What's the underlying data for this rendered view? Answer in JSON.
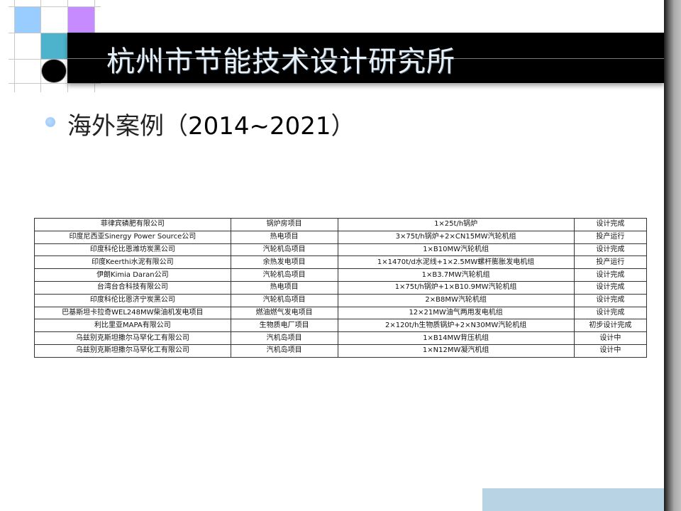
{
  "title": "杭州市节能技术设计研究所",
  "heading": {
    "text_cn": "海外案例（",
    "years": "2014~2021",
    "close": "）"
  },
  "colors": {
    "light_blue": "#99ccff",
    "purple": "#cc99ff",
    "teal": "#4db3cc",
    "title_bar": "#000000",
    "bottom_block": "#b8d4e4"
  },
  "table": {
    "rows": [
      [
        "菲律宾磷肥有限公司",
        "锅炉房项目",
        "1×25t/h锅炉",
        "设计完成"
      ],
      [
        "印度尼西亚Sinergy Power Source公司",
        "热电项目",
        "3×75t/h锅炉+2×CN15MW汽轮机组",
        "投产运行"
      ],
      [
        "印度科伦比恩潍坊炭黑公司",
        "汽轮机岛项目",
        "1×B10MW汽轮机组",
        "设计完成"
      ],
      [
        "印度Keerthi水泥有限公司",
        "余热发电项目",
        "1×1470t/d水泥线+1×2.5MW螺杆膨胀发电机组",
        "投产运行"
      ],
      [
        "伊朗Kimia Daran公司",
        "汽轮机岛项目",
        "1×B3.7MW汽轮机组",
        "设计完成"
      ],
      [
        "台湾台合科技有限公司",
        "热电项目",
        "1×75t/h锅炉+1×B10.9MW汽轮机组",
        "设计完成"
      ],
      [
        "印度科伦比恩济宁炭黑公司",
        "汽轮机岛项目",
        "2×B8MW汽轮机组",
        "设计完成"
      ],
      [
        "巴基斯坦卡拉奇WEL248MW柴油机发电项目",
        "燃油燃气发电项目",
        "12×21MW油气两用发电机组",
        "设计完成"
      ],
      [
        "利比里亚MAPA有限公司",
        "生物质电厂项目",
        "2×120t/h生物质锅炉+2×N30MW汽轮机组",
        "初步设计完成"
      ],
      [
        "乌兹别克斯坦撒尔马罕化工有限公司",
        "汽机岛项目",
        "1×B14MW背压机组",
        "设计中"
      ],
      [
        "乌兹别克斯坦撒尔马罕化工有限公司",
        "汽机岛项目",
        "1×N12MW凝汽机组",
        "设计中"
      ]
    ]
  }
}
